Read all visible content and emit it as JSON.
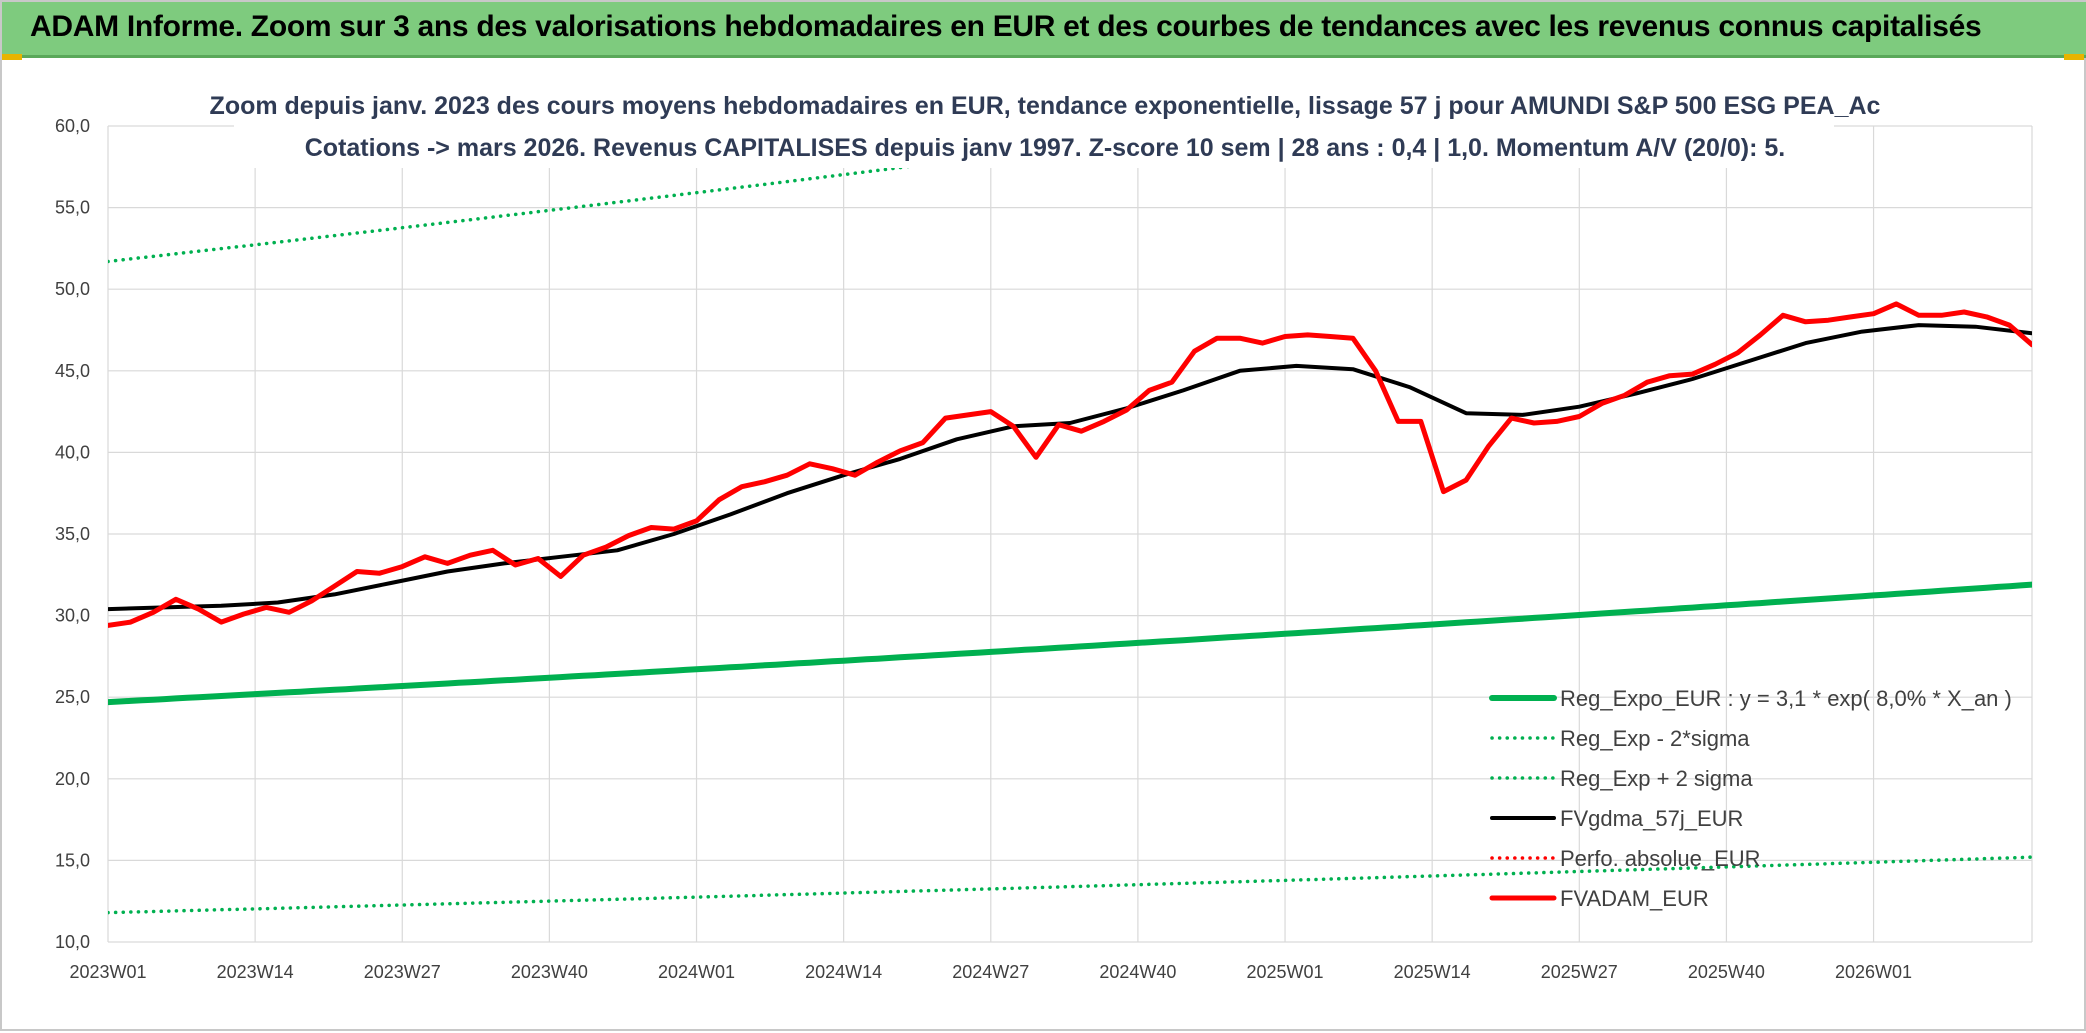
{
  "banner": {
    "title": "ADAM Informe. Zoom sur 3 ans des valorisations hebdomadaires en EUR et des courbes de tendances avec les revenus connus capitalisés"
  },
  "colors": {
    "banner_bg": "#7ecb7e",
    "reg_expo": "#00b050",
    "fvgdma": "#000000",
    "fvadam": "#ff0000",
    "perfo": "#ff0000",
    "grid": "#d9d9d9"
  },
  "chart_data": {
    "type": "line",
    "title_lines": [
      "Zoom depuis janv. 2023 des cours moyens hebdomadaires en EUR, tendance exponentielle, lissage 57 j pour AMUNDI S&P 500 ESG PEA_Ac",
      "Cotations -> mars 2026. Revenus CAPITALISES depuis janv 1997. Z-score 10 sem | 28 ans : 0,4 | 1,0. Momentum A/V (20/0): 5."
    ],
    "ylim": [
      10,
      60
    ],
    "y_ticks": [
      "10,0",
      "15,0",
      "20,0",
      "25,0",
      "30,0",
      "35,0",
      "40,0",
      "45,0",
      "50,0",
      "55,0",
      "60,0"
    ],
    "x_ticks": [
      "2023W01",
      "2023W14",
      "2023W27",
      "2023W40",
      "2024W01",
      "2024W14",
      "2024W27",
      "2024W40",
      "2025W01",
      "2025W14",
      "2025W27",
      "2025W40",
      "2026W01"
    ],
    "x_tick_index": [
      0,
      13,
      26,
      39,
      52,
      65,
      78,
      91,
      104,
      117,
      130,
      143,
      156
    ],
    "n_weeks": 171,
    "legend_position": "bottom-right",
    "grid": true,
    "series": [
      {
        "name": "Reg_Expo_EUR : y = 3,1 * exp( 8,0% *  X_an )",
        "style": "solid-thick",
        "color": "#00b050",
        "x": [
          0,
          170
        ],
        "y": [
          24.7,
          31.9
        ],
        "interp": "exp"
      },
      {
        "name": "Reg_Exp - 2*sigma",
        "style": "dotted",
        "color": "#00b050",
        "x": [
          0,
          170
        ],
        "y": [
          11.8,
          15.2
        ],
        "interp": "exp"
      },
      {
        "name": "Reg_Exp + 2 sigma",
        "style": "dotted",
        "color": "#00b050",
        "x": [
          0,
          170
        ],
        "y": [
          51.7,
          66.8
        ],
        "interp": "exp"
      },
      {
        "name": "FVgdma_57j_EUR",
        "style": "solid",
        "color": "#000000",
        "x": [
          0,
          5,
          10,
          15,
          20,
          25,
          30,
          35,
          40,
          45,
          50,
          55,
          60,
          65,
          70,
          75,
          80,
          85,
          90,
          95,
          100,
          105,
          110,
          115,
          120,
          125,
          130,
          135,
          140,
          145,
          150,
          155,
          160,
          165,
          170
        ],
        "y": [
          30.4,
          30.5,
          30.6,
          30.8,
          31.3,
          32.0,
          32.7,
          33.2,
          33.6,
          34.0,
          35.0,
          36.2,
          37.5,
          38.6,
          39.6,
          40.8,
          41.6,
          41.8,
          42.7,
          43.8,
          45.0,
          45.3,
          45.1,
          44.0,
          42.4,
          42.3,
          42.8,
          43.6,
          44.5,
          45.6,
          46.7,
          47.4,
          47.8,
          47.7,
          47.3
        ]
      },
      {
        "name": "Perfo. absolue_EUR",
        "style": "dotted",
        "color": "#ff0000",
        "x": [],
        "y": []
      },
      {
        "name": "FVADAM_EUR",
        "style": "solid-thick",
        "color": "#ff0000",
        "x": [
          0,
          2,
          4,
          6,
          8,
          10,
          12,
          14,
          16,
          18,
          20,
          22,
          24,
          26,
          28,
          30,
          32,
          34,
          36,
          38,
          40,
          42,
          44,
          46,
          48,
          50,
          52,
          54,
          56,
          58,
          60,
          62,
          64,
          66,
          68,
          70,
          72,
          74,
          76,
          78,
          80,
          82,
          84,
          86,
          88,
          90,
          92,
          94,
          96,
          98,
          100,
          102,
          104,
          106,
          108,
          110,
          112,
          114,
          116,
          118,
          120,
          122,
          124,
          126,
          128,
          130,
          132,
          134,
          136,
          138,
          140,
          142,
          144,
          146,
          148,
          150,
          152,
          154,
          156,
          158,
          160,
          162,
          164,
          166,
          168,
          170
        ],
        "y": [
          29.4,
          29.6,
          30.2,
          31.0,
          30.4,
          29.6,
          30.1,
          30.5,
          30.2,
          30.9,
          31.8,
          32.7,
          32.6,
          33.0,
          33.6,
          33.2,
          33.7,
          34.0,
          33.1,
          33.5,
          32.4,
          33.7,
          34.2,
          34.9,
          35.4,
          35.3,
          35.8,
          37.1,
          37.9,
          38.2,
          38.6,
          39.3,
          39.0,
          38.6,
          39.4,
          40.1,
          40.6,
          42.1,
          42.3,
          42.5,
          41.6,
          39.7,
          41.7,
          41.3,
          41.9,
          42.6,
          43.8,
          44.3,
          46.2,
          47.0,
          47.0,
          46.7,
          47.1,
          47.2,
          47.1,
          47.0,
          45.0,
          41.9,
          41.9,
          37.6,
          38.3,
          40.4,
          42.1,
          41.8,
          41.9,
          42.2,
          43.0,
          43.5,
          44.3,
          44.7,
          44.8,
          45.4,
          46.1,
          47.2,
          48.4,
          48.0,
          48.1,
          48.3,
          48.5,
          49.1,
          48.4,
          48.4,
          48.6,
          48.3,
          47.8,
          46.6
        ]
      }
    ]
  }
}
